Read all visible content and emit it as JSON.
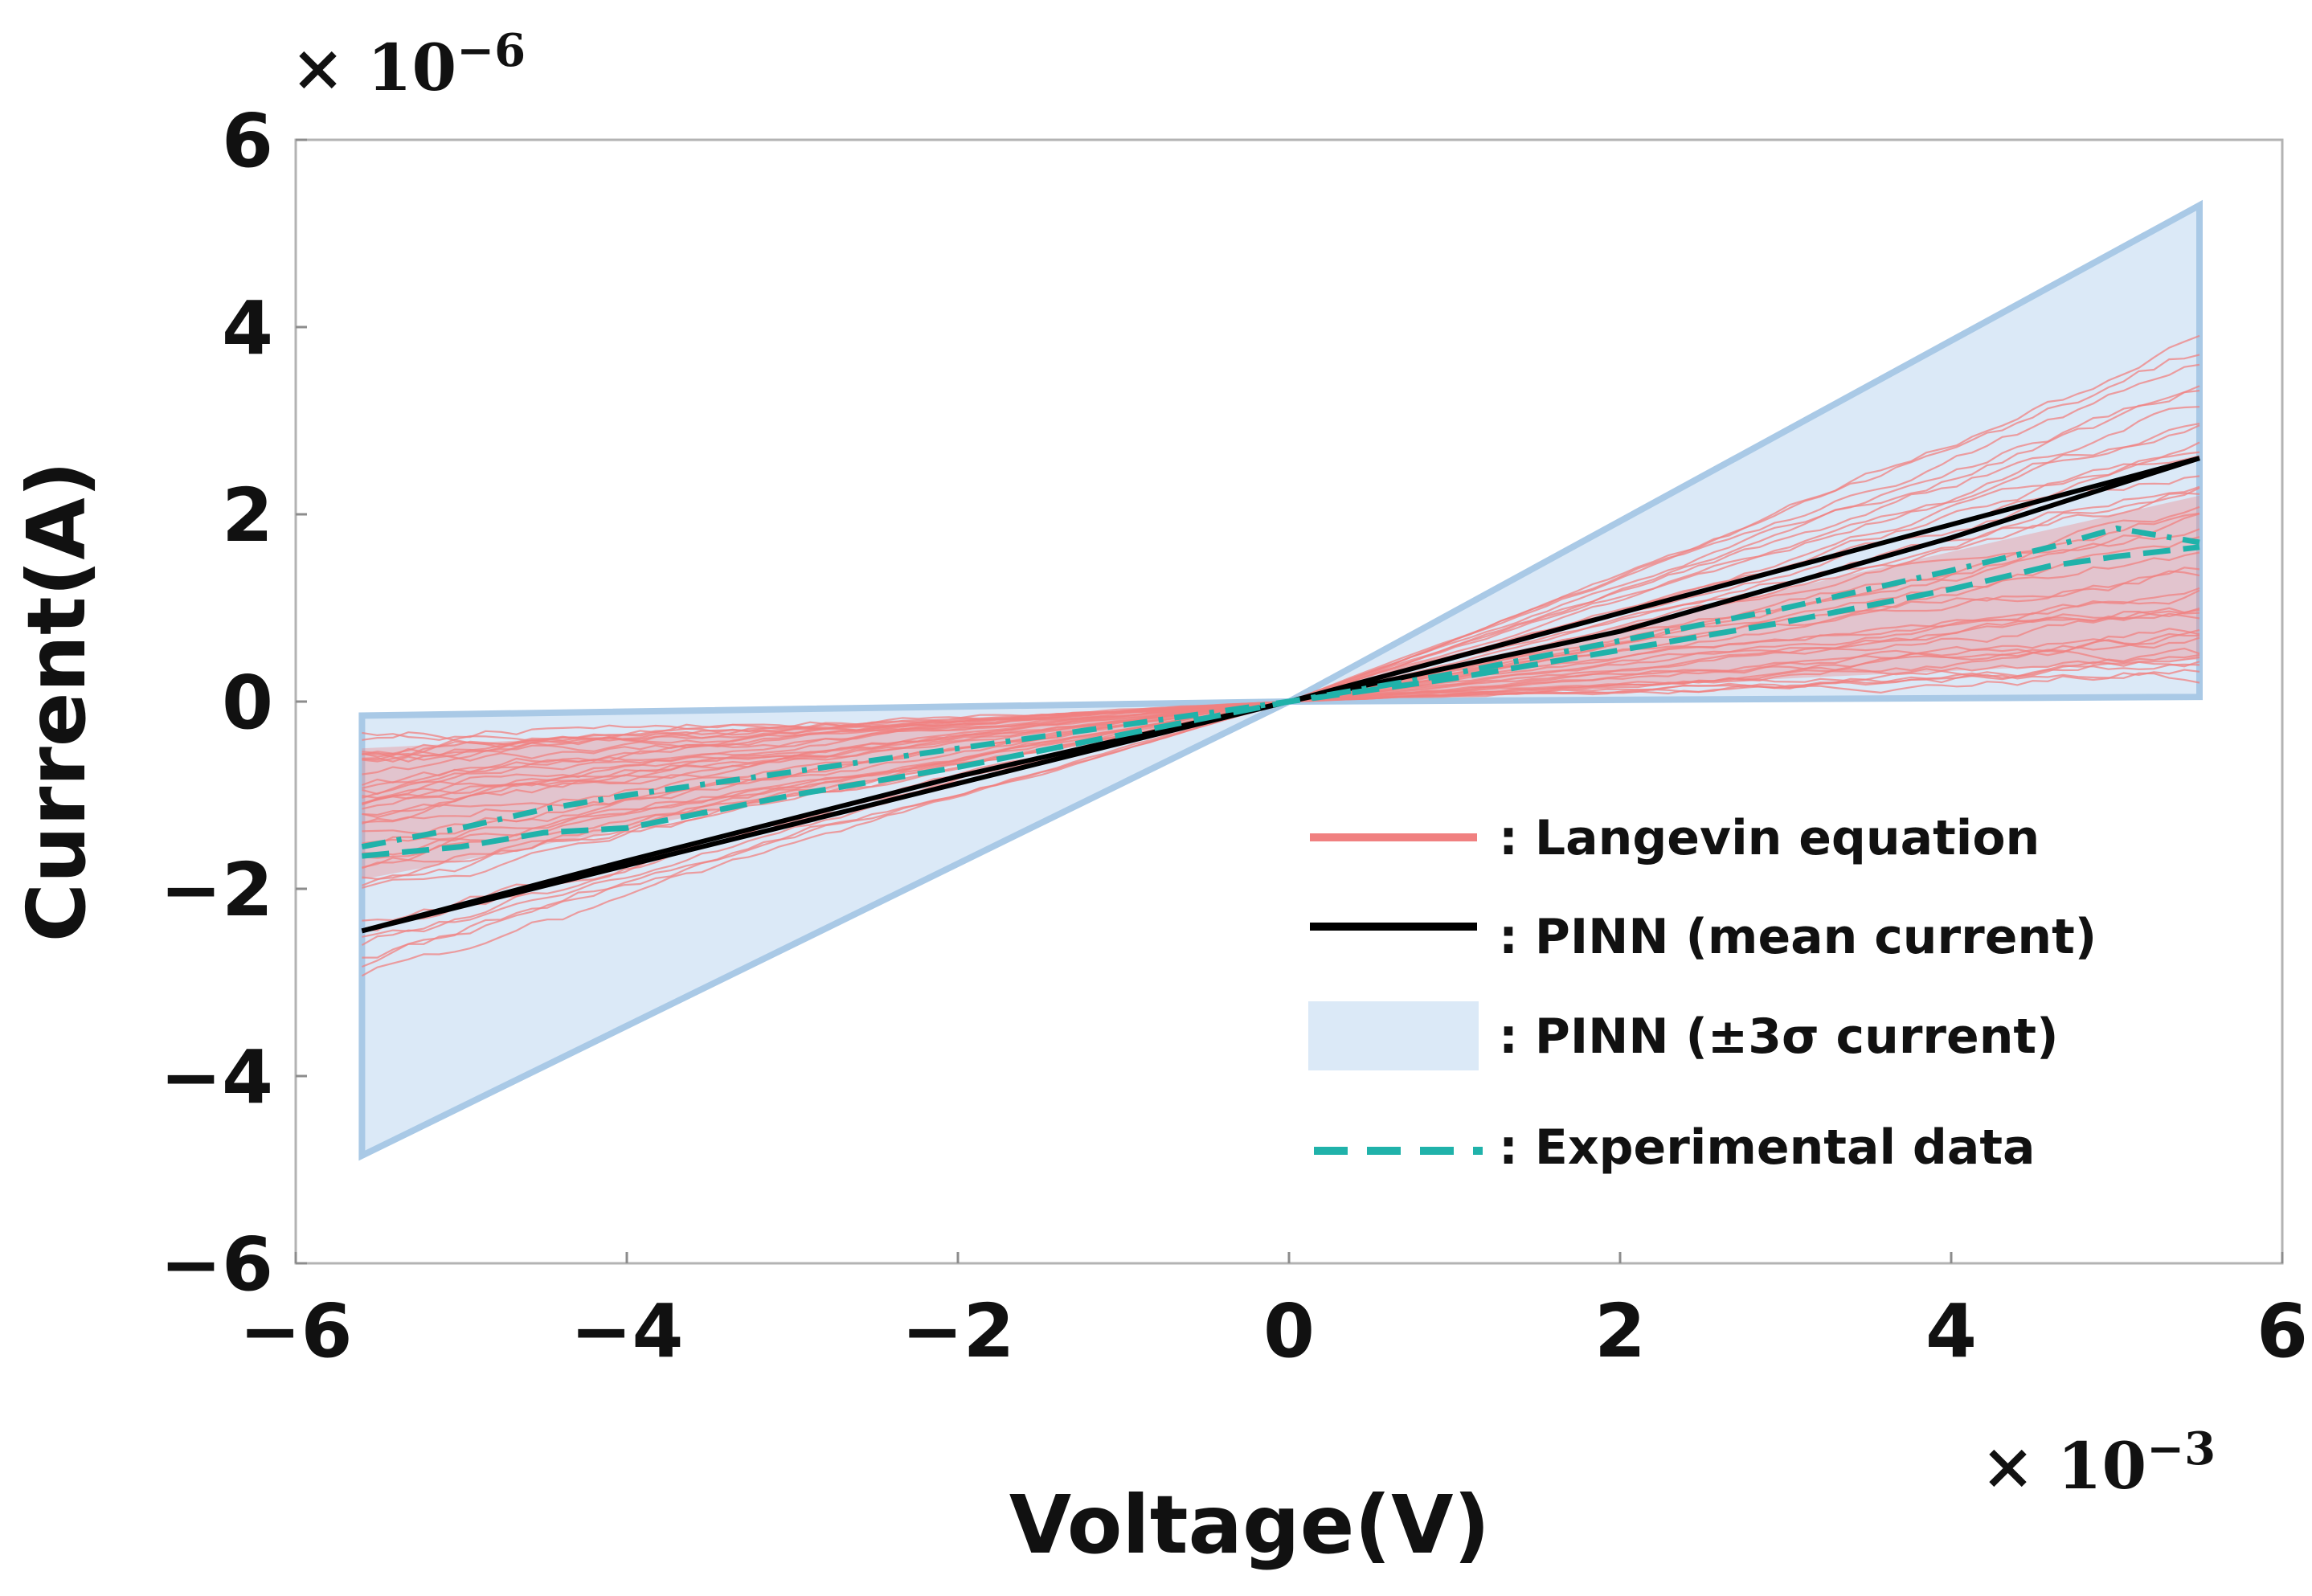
{
  "chart_data": {
    "type": "line",
    "xlabel": "Voltage(V)",
    "ylabel": "Current(A)",
    "x_multiplier": {
      "base": "× 10",
      "exponent": "−3"
    },
    "y_multiplier": {
      "base": "× 10",
      "exponent": "−6"
    },
    "xlim": [
      -6,
      6
    ],
    "ylim": [
      -6,
      6
    ],
    "xticks": [
      -6,
      -4,
      -2,
      0,
      2,
      4,
      6
    ],
    "yticks": [
      -6,
      -4,
      -2,
      0,
      2,
      4,
      6
    ],
    "xtick_labels": [
      "−6",
      "−4",
      "−2",
      "0",
      "2",
      "4",
      "6"
    ],
    "ytick_labels": [
      "−6",
      "−4",
      "−2",
      "0",
      "2",
      "4",
      "6"
    ],
    "grid": false,
    "legend_position": "center-right",
    "legend": [
      {
        "key": "langevin",
        "label": ": Langevin equation",
        "color": "#f08080",
        "style": "line"
      },
      {
        "key": "mean",
        "label": ": PINN (mean current)",
        "color": "#000000",
        "style": "line"
      },
      {
        "key": "band",
        "label": ": PINN (±3σ current)",
        "color": "#dbe9f7",
        "style": "patch"
      },
      {
        "key": "experimental",
        "label": ": Experimental data",
        "color": "#20b2aa",
        "style": "dashed"
      }
    ],
    "series": [
      {
        "name": "PINN (±3σ current)",
        "type": "band",
        "color": "#dbe9f7",
        "edge_color": "#a9c9e6",
        "polygon": [
          [
            -5.6,
            -4.85
          ],
          [
            -5.6,
            -0.15
          ],
          [
            0,
            0
          ],
          [
            5.5,
            0.05
          ],
          [
            5.5,
            5.3
          ],
          [
            0,
            0
          ]
        ]
      },
      {
        "name": "Langevin equation",
        "type": "ensemble",
        "color": "#f08080",
        "members": 40,
        "v_max": 5.5,
        "v_min": -5.6,
        "positive_end_range": [
          0.3,
          3.8
        ],
        "negative_end_range": [
          -2.8,
          -0.5
        ]
      },
      {
        "name": "PINN (mean current)",
        "type": "loop",
        "color": "#000000",
        "forward": [
          [
            -5.6,
            -2.45
          ],
          [
            0,
            0
          ],
          [
            5.5,
            2.6
          ]
        ],
        "return": [
          [
            5.5,
            2.6
          ],
          [
            4.0,
            1.75
          ],
          [
            2.0,
            0.75
          ],
          [
            0,
            0
          ],
          [
            -2.0,
            -0.8
          ],
          [
            -4.0,
            -1.7
          ],
          [
            -5.6,
            -2.45
          ]
        ]
      },
      {
        "name": "Experimental data",
        "type": "loop",
        "color": "#20b2aa",
        "dashed": true,
        "upper": [
          [
            -5.6,
            -1.55
          ],
          [
            -5.0,
            -1.35
          ],
          [
            -4.5,
            -1.15
          ],
          [
            -4.0,
            -1.0
          ],
          [
            -3.0,
            -0.75
          ],
          [
            -2.0,
            -0.5
          ],
          [
            -1.0,
            -0.25
          ],
          [
            0,
            0
          ],
          [
            1.0,
            0.3
          ],
          [
            2.0,
            0.65
          ],
          [
            3.0,
            1.0
          ],
          [
            4.0,
            1.4
          ],
          [
            4.6,
            1.65
          ],
          [
            5.0,
            1.85
          ],
          [
            5.5,
            1.7
          ]
        ],
        "lower": [
          [
            -5.6,
            -1.65
          ],
          [
            -5.0,
            -1.55
          ],
          [
            -4.5,
            -1.4
          ],
          [
            -4.0,
            -1.35
          ],
          [
            -3.0,
            -1.0
          ],
          [
            -2.0,
            -0.7
          ],
          [
            -1.0,
            -0.35
          ],
          [
            0,
            0
          ],
          [
            1.0,
            0.25
          ],
          [
            2.0,
            0.55
          ],
          [
            3.0,
            0.85
          ],
          [
            4.0,
            1.2
          ],
          [
            4.6,
            1.45
          ],
          [
            5.0,
            1.55
          ],
          [
            5.5,
            1.65
          ]
        ]
      }
    ]
  }
}
